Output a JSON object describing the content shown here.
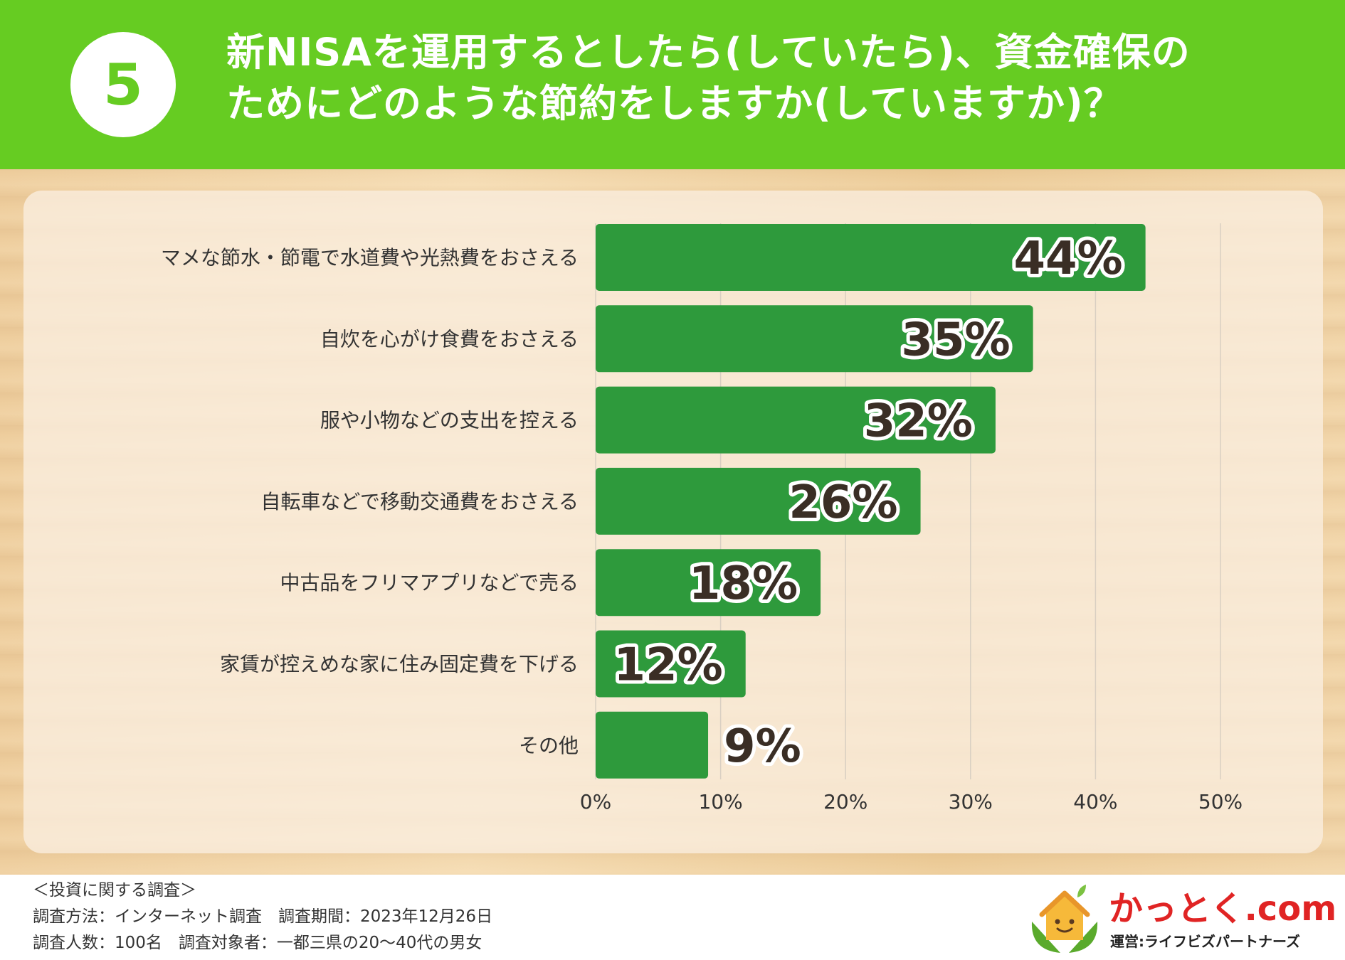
{
  "header": {
    "number": "5",
    "title_line1": "新NISAを運用するとしたら(していたら)、資金確保の",
    "title_line2": "ためにどのような節約をしますか(していますか)？"
  },
  "colors": {
    "header_bg": "#66cc22",
    "bar": "#2e9a3c",
    "label_text": "#333333",
    "value_text": "#3a2e25",
    "logo_red": "#e02424"
  },
  "chart_data": {
    "type": "bar",
    "orientation": "horizontal",
    "categories": [
      "マメな節水・節電で水道費や光熱費をおさえる",
      "自炊を心がけ食費をおさえる",
      "服や小物などの支出を控える",
      "自転車などで移動交通費をおさえる",
      "中古品をフリマアプリなどで売る",
      "家賃が控えめな家に住み固定費を下げる",
      "その他"
    ],
    "values": [
      44,
      35,
      32,
      26,
      18,
      12,
      9
    ],
    "value_labels": [
      "44%",
      "35%",
      "32%",
      "26%",
      "18%",
      "12%",
      "9%"
    ],
    "xlim": [
      0,
      50
    ],
    "xticks": [
      "0%",
      "10%",
      "20%",
      "30%",
      "40%",
      "50%"
    ],
    "grid": true
  },
  "footer": {
    "survey_title": "＜投資に関する調査＞",
    "line1": "調査方法：インターネット調査　調査期間：2023年12月26日",
    "line2": "調査人数：100名　調査対象者：一都三県の20〜40代の男女"
  },
  "logo": {
    "name": "かっとく",
    "domain": ".com",
    "operator": "運営:ライフビズパートナーズ",
    "icon": "house-sprout-icon"
  }
}
